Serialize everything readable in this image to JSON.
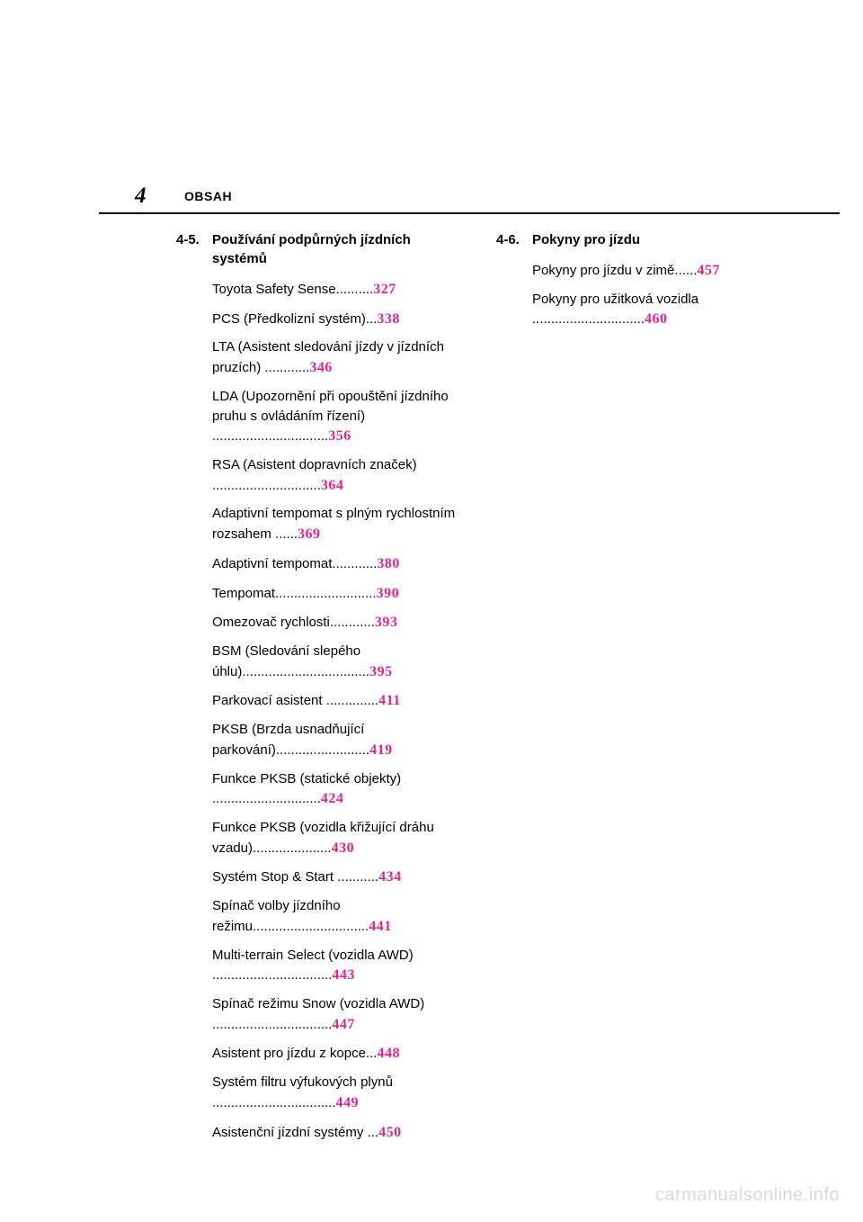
{
  "page_number": "4",
  "section_label": "OBSAH",
  "pageref_color": "#dd2590",
  "left": {
    "number": "4-5.",
    "title": "Používání podpůrných jízdních systémů",
    "entries": [
      {
        "label": "Toyota Safety Sense",
        "dots": "..........",
        "page": "327"
      },
      {
        "label": "PCS (Předkolizní systém)",
        "dots": "...",
        "page": "338"
      },
      {
        "label_l1": "LTA (Asistent sledování jízdy",
        "label_l2": "v jízdních pruzích)",
        "dots": "............",
        "page": "346"
      },
      {
        "label_l1": "LDA (Upozornění při opouštění",
        "label_l2_a": "jízdního pruhu s ovládáním",
        "label_l2": "řízení)",
        "dots": "...............................",
        "page": "356"
      },
      {
        "label_l1": "RSA (Asistent dopravních",
        "label_l2": "značek)",
        "dots": ".............................",
        "page": "364"
      },
      {
        "label_l1": "Adaptivní tempomat s plným",
        "label_l2": "rychlostním rozsahem",
        "dots": "......",
        "page": "369"
      },
      {
        "label": "Adaptivní tempomat",
        "dots": "............",
        "page": "380"
      },
      {
        "label": "Tempomat",
        "dots": "...........................",
        "page": "390"
      },
      {
        "label": "Omezovač rychlosti",
        "dots": "............",
        "page": "393"
      },
      {
        "label_l1": "BSM (Sledování slepého",
        "label_l2": "úhlu)",
        "dots": "..................................",
        "page": "395"
      },
      {
        "label": "Parkovací asistent",
        "dots": "..............",
        "page": "411"
      },
      {
        "label_l1": "PKSB (Brzda usnadňující",
        "label_l2": "parkování)",
        "dots": ".........................",
        "page": "419"
      },
      {
        "label_l1": "Funkce PKSB (statické",
        "label_l2": "objekty)",
        "dots": ".............................",
        "page": "424"
      },
      {
        "label_l1": "Funkce PKSB (vozidla křižující",
        "label_l2": "dráhu vzadu)",
        "dots": ".....................",
        "page": "430"
      },
      {
        "label": "Systém Stop & Start",
        "dots": "...........",
        "page": "434"
      },
      {
        "label_l1": "Spínač volby jízdního",
        "label_l2": "režimu",
        "dots": "...............................",
        "page": "441"
      },
      {
        "label_l1": "Multi-terrain Select (vozidla",
        "label_l2": "AWD)",
        "dots": "................................",
        "page": "443"
      },
      {
        "label_l1": "Spínač režimu Snow (vozidla",
        "label_l2": "AWD)",
        "dots": "................................",
        "page": "447"
      },
      {
        "label": "Asistent pro jízdu z kopce",
        "dots": "...",
        "page": "448"
      },
      {
        "label_l1": "Systém filtru výfukových",
        "label_l2": "plynů",
        "dots": ".................................",
        "page": "449"
      },
      {
        "label": "Asistenční jízdní systémy",
        "dots": "...",
        "page": "450"
      }
    ]
  },
  "right": {
    "number": "4-6.",
    "title": "Pokyny pro jízdu",
    "entries": [
      {
        "label": "Pokyny pro jízdu v zimě",
        "dots": "......",
        "page": "457"
      },
      {
        "label_l1": "Pokyny pro užitková",
        "label_l2": "vozidla",
        "dots": "..............................",
        "page": "460"
      }
    ]
  },
  "watermark": "carmanualsonline.info"
}
